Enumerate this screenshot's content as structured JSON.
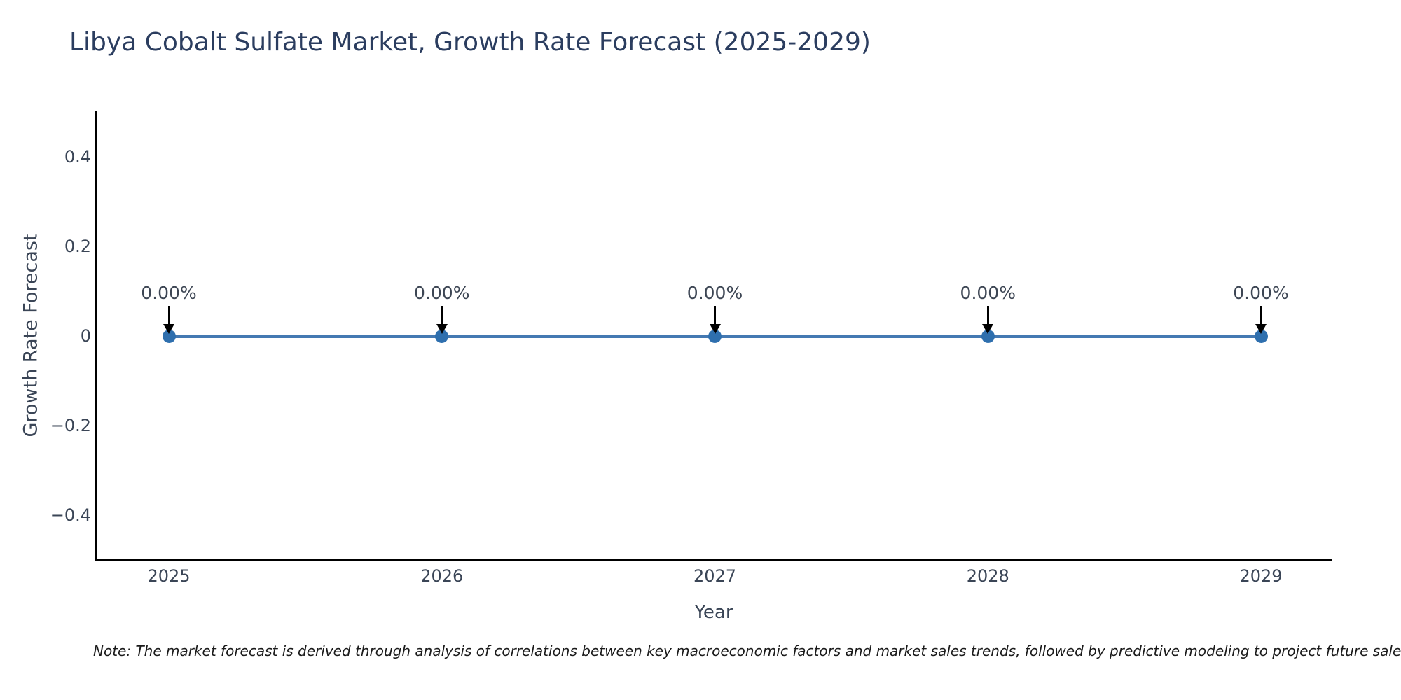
{
  "title": "Libya Cobalt Sulfate Market, Growth Rate Forecast (2025-2029)",
  "note": "Note: The market forecast is derived through analysis of correlations between key macroeconomic factors and market sales trends, followed by predictive modeling to project future sales.",
  "chart_data": {
    "type": "line",
    "title": "Libya Cobalt Sulfate Market, Growth Rate Forecast (2025-2029)",
    "xlabel": "Year",
    "ylabel": "Growth Rate Forecast",
    "x": [
      2025,
      2026,
      2027,
      2028,
      2029
    ],
    "categories": [
      "2025",
      "2026",
      "2027",
      "2028",
      "2029"
    ],
    "series": [
      {
        "name": "Growth Rate Forecast",
        "values": [
          0,
          0,
          0,
          0,
          0
        ]
      }
    ],
    "point_labels": [
      "0.00%",
      "0.00%",
      "0.00%",
      "0.00%",
      "0.00%"
    ],
    "annotations_arrow": "down-arrow-to-point",
    "ylim": [
      -0.5,
      0.5
    ],
    "yticks": [
      {
        "value": 0.4,
        "label": "0.4"
      },
      {
        "value": 0.2,
        "label": "0.2"
      },
      {
        "value": 0,
        "label": "0"
      },
      {
        "value": -0.2,
        "label": "−0.2"
      },
      {
        "value": -0.4,
        "label": "−0.4"
      }
    ],
    "grid": false,
    "legend": "none",
    "line_color": "#4479b2",
    "marker_color": "#2e6fae",
    "arrow_color": "#000000",
    "axis_color": "#000000",
    "title_color": "#2b3d5f",
    "tick_color": "#3a4556"
  }
}
